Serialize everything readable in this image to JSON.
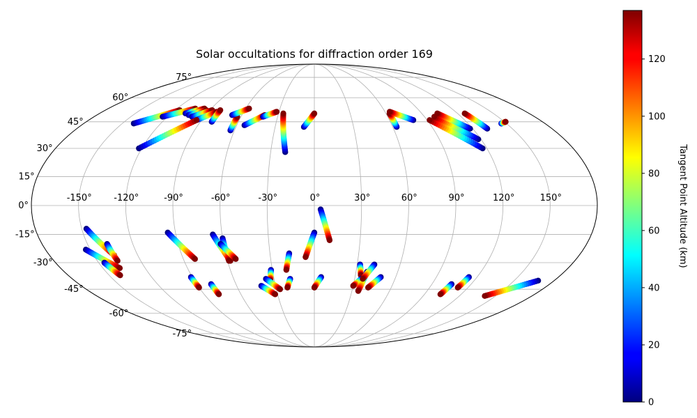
{
  "chart_data": {
    "type": "scatter",
    "projection": "mollweide",
    "title": "Solar occultations for diffraction order 169",
    "colorbar": {
      "label": "Tangent Point Altitude (km)",
      "range": [
        0,
        137
      ],
      "ticks": [
        0,
        20,
        40,
        60,
        80,
        100,
        120
      ],
      "tick_labels": [
        "0",
        "20",
        "40",
        "60",
        "80",
        "100",
        "120"
      ],
      "colormap": "jet"
    },
    "lon_ticks": [
      -150,
      -120,
      -90,
      -60,
      -30,
      0,
      30,
      60,
      90,
      120,
      150
    ],
    "lon_tick_labels": [
      "-150°",
      "-120°",
      "-90°",
      "-60°",
      "-30°",
      "0°",
      "30°",
      "60°",
      "90°",
      "120°",
      "150°"
    ],
    "lat_ticks": [
      75,
      60,
      45,
      30,
      15,
      0,
      -15,
      -30,
      -45,
      -60,
      -75
    ],
    "lat_tick_labels": [
      "75°",
      "60°",
      "45°",
      "30°",
      "15°",
      "0°",
      "-15°",
      "-30°",
      "-45°",
      "-60°",
      "-75°"
    ],
    "tracks": [
      {
        "start": [
          -141,
          44
        ],
        "end": [
          -116,
          52
        ]
      },
      {
        "start": [
          -124,
          48
        ],
        "end": [
          -104,
          53
        ]
      },
      {
        "start": [
          -108,
          50
        ],
        "end": [
          -96,
          53
        ]
      },
      {
        "start": [
          -104,
          49
        ],
        "end": [
          -93,
          52
        ]
      },
      {
        "start": [
          -100,
          48
        ],
        "end": [
          -88,
          52
        ]
      },
      {
        "start": [
          -94,
          46
        ],
        "end": [
          -83,
          51
        ]
      },
      {
        "start": [
          -122,
          30
        ],
        "end": [
          -94,
          46
        ]
      },
      {
        "start": [
          -81,
          45
        ],
        "end": [
          -81,
          52
        ]
      },
      {
        "start": [
          -63,
          40
        ],
        "end": [
          -63,
          48
        ]
      },
      {
        "start": [
          -68,
          49
        ],
        "end": [
          -57,
          53
        ]
      },
      {
        "start": [
          -54,
          43
        ],
        "end": [
          -41,
          49
        ]
      },
      {
        "start": [
          -42,
          48
        ],
        "end": [
          -32,
          51
        ]
      },
      {
        "start": [
          -20,
          28
        ],
        "end": [
          -26,
          50
        ]
      },
      {
        "start": [
          -8,
          42
        ],
        "end": [
          0,
          50
        ]
      },
      {
        "start": [
          63,
          42
        ],
        "end": [
          63,
          50
        ]
      },
      {
        "start": [
          79,
          46
        ],
        "end": [
          64,
          51
        ]
      },
      {
        "start": [
          117,
          30
        ],
        "end": [
          92,
          46
        ]
      },
      {
        "start": [
          118,
          35
        ],
        "end": [
          98,
          48
        ]
      },
      {
        "start": [
          118,
          41
        ],
        "end": [
          103,
          50
        ]
      },
      {
        "start": [
          131,
          41
        ],
        "end": [
          126,
          50
        ]
      },
      {
        "start": [
          146,
          44
        ],
        "end": [
          151,
          45
        ]
      },
      {
        "start": [
          -147,
          -12
        ],
        "end": [
          -136,
          -26
        ]
      },
      {
        "start": [
          -137,
          -20
        ],
        "end": [
          -136,
          -29
        ]
      },
      {
        "start": [
          -153,
          -23
        ],
        "end": [
          -138,
          -33
        ]
      },
      {
        "start": [
          -146,
          -30
        ],
        "end": [
          -142,
          -37
        ]
      },
      {
        "start": [
          -95,
          -14
        ],
        "end": [
          -82,
          -28
        ]
      },
      {
        "start": [
          -66,
          -15
        ],
        "end": [
          -58,
          -29
        ]
      },
      {
        "start": [
          -60,
          -17
        ],
        "end": [
          -59,
          -29
        ]
      },
      {
        "start": [
          -62,
          -20
        ],
        "end": [
          -54,
          -28
        ]
      },
      {
        "start": [
          -91,
          -38
        ],
        "end": [
          -90,
          -44
        ]
      },
      {
        "start": [
          -79,
          -42
        ],
        "end": [
          -78,
          -48
        ]
      },
      {
        "start": [
          -41,
          -43
        ],
        "end": [
          -32,
          -48
        ]
      },
      {
        "start": [
          -31,
          -34
        ],
        "end": [
          -33,
          -40
        ]
      },
      {
        "start": [
          -36,
          -39
        ],
        "end": [
          -27,
          -45
        ]
      },
      {
        "start": [
          -17,
          -25
        ],
        "end": [
          -20,
          -34
        ]
      },
      {
        "start": [
          -18,
          -39
        ],
        "end": [
          -21,
          -44
        ]
      },
      {
        "start": [
          0,
          -14
        ],
        "end": [
          -6,
          -27
        ]
      },
      {
        "start": [
          4,
          -2
        ],
        "end": [
          10,
          -18
        ]
      },
      {
        "start": [
          5,
          -38
        ],
        "end": [
          0,
          -44
        ]
      },
      {
        "start": [
          32,
          -31
        ],
        "end": [
          34,
          -37
        ]
      },
      {
        "start": [
          35,
          -39
        ],
        "end": [
          30,
          -43
        ]
      },
      {
        "start": [
          38,
          -35
        ],
        "end": [
          35,
          -46
        ]
      },
      {
        "start": [
          42,
          -31
        ],
        "end": [
          36,
          -39
        ]
      },
      {
        "start": [
          49,
          -38
        ],
        "end": [
          42,
          -44
        ]
      },
      {
        "start": [
          105,
          -42
        ],
        "end": [
          103,
          -48
        ]
      },
      {
        "start": [
          114,
          -38
        ],
        "end": [
          112,
          -44
        ]
      },
      {
        "start": [
          168,
          -40
        ],
        "end": [
          141,
          -49
        ]
      }
    ]
  }
}
